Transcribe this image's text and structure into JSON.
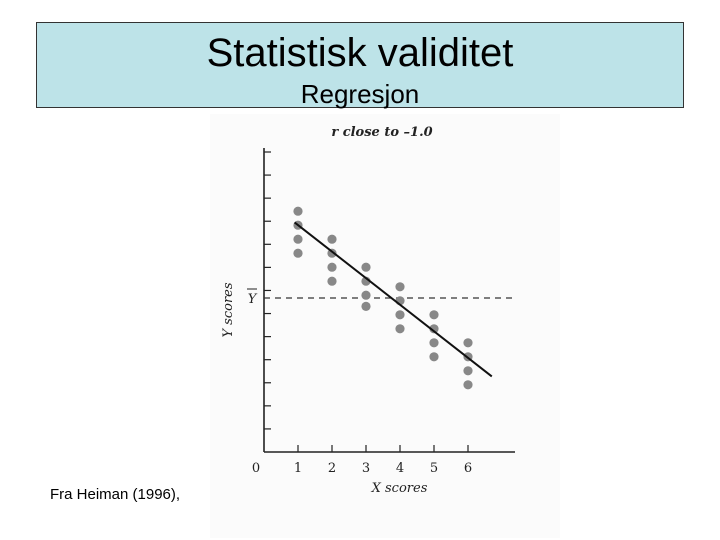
{
  "slide": {
    "title": "Statistisk validitet",
    "subtitle": "Regresjon",
    "credit": "Fra Heiman (1996),"
  },
  "chart_data": {
    "type": "scatter",
    "title": "r close to –1.0",
    "xlabel": "X scores",
    "ylabel": "Y scores",
    "mean_label": "Y",
    "origin_label": "0",
    "x_ticks": [
      "1",
      "2",
      "3",
      "4",
      "5",
      "6"
    ],
    "xlim": [
      0,
      7
    ],
    "ylim": [
      0,
      10
    ],
    "y_tick_count": 13,
    "mean_y": 5.5,
    "points": [
      {
        "x": 1,
        "y": 8.6
      },
      {
        "x": 1,
        "y": 8.1
      },
      {
        "x": 1,
        "y": 7.6
      },
      {
        "x": 1,
        "y": 7.1
      },
      {
        "x": 2,
        "y": 7.6
      },
      {
        "x": 2,
        "y": 7.1
      },
      {
        "x": 2,
        "y": 6.6
      },
      {
        "x": 2,
        "y": 6.1
      },
      {
        "x": 3,
        "y": 6.6
      },
      {
        "x": 3,
        "y": 6.1
      },
      {
        "x": 3,
        "y": 5.6
      },
      {
        "x": 3,
        "y": 5.2
      },
      {
        "x": 4,
        "y": 5.9
      },
      {
        "x": 4,
        "y": 5.4
      },
      {
        "x": 4,
        "y": 4.9
      },
      {
        "x": 4,
        "y": 4.4
      },
      {
        "x": 5,
        "y": 4.9
      },
      {
        "x": 5,
        "y": 4.4
      },
      {
        "x": 5,
        "y": 3.9
      },
      {
        "x": 5,
        "y": 3.4
      },
      {
        "x": 6,
        "y": 3.9
      },
      {
        "x": 6,
        "y": 3.4
      },
      {
        "x": 6,
        "y": 2.9
      },
      {
        "x": 6,
        "y": 2.4
      }
    ],
    "regression_line": {
      "x1": 0.9,
      "y1": 8.2,
      "x2": 6.7,
      "y2": 2.7
    },
    "colors": {
      "points": "#888888",
      "line": "#111111",
      "axis": "#222222",
      "title_bg": "#bde3e8"
    }
  }
}
